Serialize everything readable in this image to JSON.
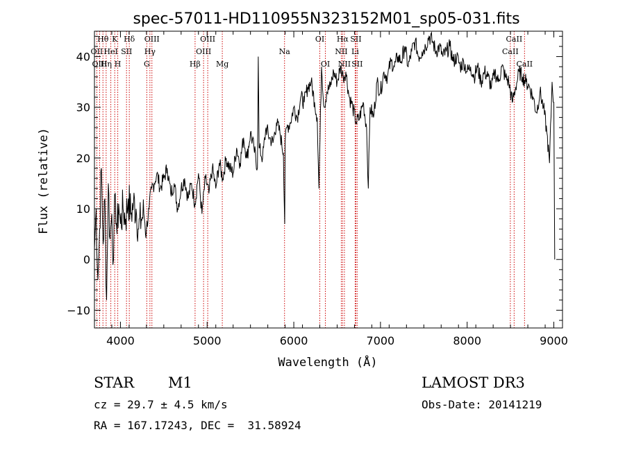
{
  "chart_data": {
    "type": "line",
    "title": "spec-57011-HD110955N323152M01_sp05-031.fits",
    "xlabel": "Wavelength (Å)",
    "ylabel": "Flux (relative)",
    "xlim": [
      3700,
      9100
    ],
    "ylim": [
      -13.5,
      45
    ],
    "xticks": [
      4000,
      5000,
      6000,
      7000,
      8000,
      9000
    ],
    "yticks": [
      -10,
      0,
      10,
      20,
      30,
      40
    ],
    "grid": false,
    "line_color": "#000000",
    "marker_color": "#cc0000",
    "series": [
      {
        "name": "flux",
        "x": [
          3700,
          3720,
          3740,
          3760,
          3780,
          3800,
          3820,
          3840,
          3860,
          3880,
          3900,
          3920,
          3940,
          3960,
          3980,
          4000,
          4030,
          4060,
          4090,
          4120,
          4150,
          4180,
          4210,
          4240,
          4270,
          4300,
          4330,
          4360,
          4390,
          4420,
          4460,
          4500,
          4540,
          4580,
          4620,
          4660,
          4700,
          4740,
          4780,
          4820,
          4860,
          4900,
          4940,
          4980,
          5020,
          5060,
          5100,
          5140,
          5180,
          5220,
          5260,
          5300,
          5340,
          5380,
          5420,
          5460,
          5500,
          5540,
          5580,
          5590,
          5600,
          5640,
          5680,
          5720,
          5760,
          5800,
          5840,
          5880,
          5895,
          5900,
          5920,
          5960,
          6000,
          6040,
          6080,
          6120,
          6160,
          6200,
          6240,
          6270,
          6290,
          6320,
          6350,
          6380,
          6420,
          6460,
          6500,
          6540,
          6570,
          6600,
          6640,
          6680,
          6720,
          6760,
          6800,
          6840,
          6860,
          6880,
          6920,
          6960,
          7000,
          7040,
          7080,
          7120,
          7160,
          7200,
          7240,
          7280,
          7320,
          7360,
          7400,
          7440,
          7480,
          7520,
          7560,
          7600,
          7640,
          7680,
          7720,
          7760,
          7800,
          7840,
          7880,
          7920,
          7960,
          8000,
          8040,
          8080,
          8120,
          8160,
          8200,
          8240,
          8280,
          8320,
          8360,
          8400,
          8440,
          8480,
          8520,
          8560,
          8600,
          8640,
          8680,
          8720,
          8760,
          8800,
          8840,
          8880,
          8920,
          8950,
          8980,
          9000,
          9010
        ],
        "y": [
          2,
          10,
          -4,
          6,
          18,
          3,
          12,
          -8,
          15,
          4,
          9,
          0,
          13,
          5,
          11,
          7,
          10,
          8,
          12,
          9,
          11,
          10,
          6,
          8,
          9,
          6,
          10,
          14,
          15,
          17,
          14,
          16,
          18,
          13,
          15,
          10,
          14,
          16,
          12,
          15,
          11,
          17,
          9,
          16,
          13,
          18,
          14,
          19,
          16,
          20,
          18,
          17,
          22,
          19,
          24,
          20,
          25,
          22,
          18,
          40,
          22,
          20,
          26,
          24,
          23,
          27,
          25,
          21,
          7,
          23,
          26,
          27,
          30,
          28,
          32,
          31,
          34,
          35,
          31,
          28,
          14,
          38,
          30,
          33,
          34,
          37,
          35,
          38,
          36,
          37,
          32,
          30,
          27,
          28,
          31,
          26,
          14,
          30,
          28,
          35,
          33,
          37,
          36,
          39,
          38,
          40,
          39,
          42,
          38,
          41,
          43,
          40,
          41,
          42,
          44,
          43,
          41,
          42,
          40,
          41,
          42,
          39,
          40,
          38,
          39,
          37,
          38,
          36,
          38,
          35,
          37,
          36,
          34,
          37,
          35,
          38,
          36,
          35,
          31,
          34,
          37,
          36,
          35,
          34,
          32,
          29,
          33,
          30,
          25,
          19,
          35,
          31,
          0
        ]
      }
    ],
    "spectral_lines": [
      {
        "label": "Hθ",
        "wavelength": 3798,
        "row": 0
      },
      {
        "label": "OII",
        "wavelength": 3727,
        "row": 1
      },
      {
        "label": "Hη",
        "wavelength": 3835,
        "row": 2
      },
      {
        "label": "OIII",
        "wavelength": 3760,
        "row": 2
      },
      {
        "label": "HeI",
        "wavelength": 3889,
        "row": 1
      },
      {
        "label": "K",
        "wavelength": 3934,
        "row": 0
      },
      {
        "label": "H",
        "wavelength": 3969,
        "row": 2
      },
      {
        "label": "SII",
        "wavelength": 4070,
        "row": 1
      },
      {
        "label": "Hδ",
        "wavelength": 4102,
        "row": 0
      },
      {
        "label": "OIII",
        "wavelength": 4363,
        "row": 0
      },
      {
        "label": "Hγ",
        "wavelength": 4340,
        "row": 1
      },
      {
        "label": "G",
        "wavelength": 4304,
        "row": 2
      },
      {
        "label": "Hβ",
        "wavelength": 4861,
        "row": 2
      },
      {
        "label": "OIII",
        "wavelength": 5007,
        "row": 0
      },
      {
        "label": "OIII",
        "wavelength": 4959,
        "row": 1
      },
      {
        "label": "Mg",
        "wavelength": 5175,
        "row": 2
      },
      {
        "label": "Na",
        "wavelength": 5893,
        "row": 1
      },
      {
        "label": "OI",
        "wavelength": 6300,
        "row": 0
      },
      {
        "label": "OI",
        "wavelength": 6364,
        "row": 2
      },
      {
        "label": "Hα",
        "wavelength": 6563,
        "row": 0
      },
      {
        "label": "SII",
        "wavelength": 6716,
        "row": 0
      },
      {
        "label": "NII",
        "wavelength": 6548,
        "row": 1
      },
      {
        "label": "Li",
        "wavelength": 6708,
        "row": 1
      },
      {
        "label": "NII",
        "wavelength": 6584,
        "row": 2
      },
      {
        "label": "SII",
        "wavelength": 6731,
        "row": 2
      },
      {
        "label": "CaII",
        "wavelength": 8542,
        "row": 0
      },
      {
        "label": "CaII",
        "wavelength": 8498,
        "row": 1
      },
      {
        "label": "CaII",
        "wavelength": 8662,
        "row": 2
      }
    ]
  },
  "info": {
    "object_class": "STAR",
    "subclass": "M1",
    "survey": "LAMOST DR3",
    "redshift": "cz = 29.7 ± 4.5 km/s",
    "obs_date": "Obs-Date: 20141219",
    "coords": "RA = 167.17243, DEC =  31.58924"
  }
}
